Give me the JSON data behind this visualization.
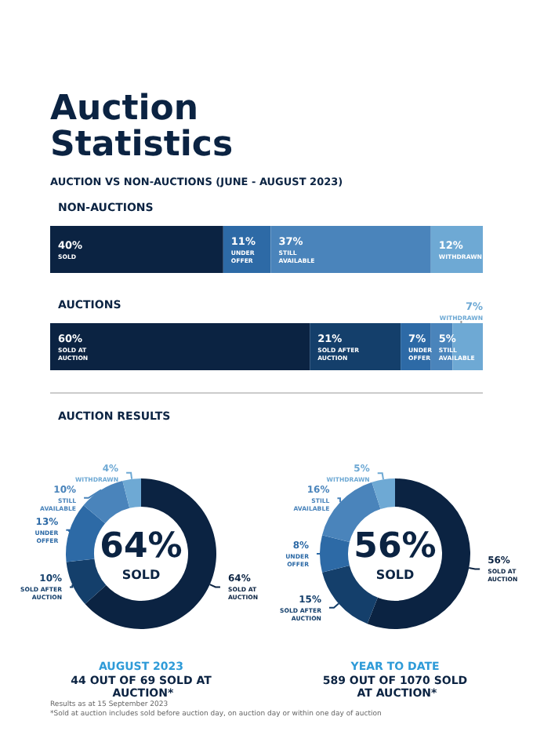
{
  "chart_data": [
    {
      "type": "other",
      "title": "Auction Statistics",
      "subtitle": "AUCTION VS NON-AUCTIONS (JUNE - AUGUST 2023)"
    },
    {
      "type": "bar",
      "title": "NON-AUCTIONS",
      "orientation": "horizontal",
      "stacked": true,
      "categories": [
        null
      ],
      "xlim": [
        0,
        100
      ],
      "tick_labels": false,
      "legend": false,
      "series": [
        {
          "name": "SOLD",
          "color": "#0b2342",
          "values": [
            40
          ],
          "value_labels": [
            "40%"
          ]
        },
        {
          "name": "UNDER OFFER",
          "color": "#2d6aa6",
          "values": [
            11
          ],
          "value_labels": [
            "11%"
          ]
        },
        {
          "name": "STILL AVAILABLE",
          "color": "#4a84bb",
          "values": [
            37
          ],
          "value_labels": [
            "37%"
          ]
        },
        {
          "name": "WITHDRAWN",
          "color": "#6ea9d4",
          "values": [
            12
          ],
          "value_labels": [
            "12%"
          ]
        }
      ]
    },
    {
      "type": "bar",
      "title": "AUCTIONS",
      "orientation": "horizontal",
      "stacked": true,
      "categories": [
        null
      ],
      "xlim": [
        0,
        100
      ],
      "tick_labels": false,
      "legend": false,
      "series": [
        {
          "name": "SOLD AT AUCTION",
          "color": "#0b2342",
          "values": [
            60
          ],
          "value_labels": [
            "60%"
          ]
        },
        {
          "name": "SOLD AFTER AUCTION",
          "color": "#143f6b",
          "values": [
            21
          ],
          "value_labels": [
            "21%"
          ]
        },
        {
          "name": "UNDER OFFER",
          "color": "#2d6aa6",
          "values": [
            7
          ],
          "value_labels": [
            "7%"
          ]
        },
        {
          "name": "STILL AVAILABLE",
          "color": "#4a84bb",
          "values": [
            5
          ],
          "value_labels": [
            "5%"
          ]
        },
        {
          "name": "WITHDRAWN",
          "color": "#6ea9d4",
          "values": [
            7
          ],
          "value_labels": [
            "7%"
          ]
        }
      ]
    },
    {
      "type": "donut",
      "title": "AUCTION RESULTS",
      "legend": false,
      "categories": [
        "SOLD AT AUCTION",
        "SOLD AFTER AUCTION",
        "UNDER OFFER",
        "STILL AVAILABLE",
        "WITHDRAWN"
      ],
      "values": [
        64,
        10,
        13,
        10,
        4
      ],
      "value_labels": [
        "64%",
        "10%",
        "13%",
        "10%",
        "4%"
      ],
      "colors": [
        "#0b2342",
        "#143f6b",
        "#2d6aa6",
        "#4a84bb",
        "#6ea9d4"
      ],
      "annotations": [
        "64%",
        "SOLD",
        "AUGUST 2023",
        "44 OUT OF 69 SOLD AT AUCTION*"
      ]
    },
    {
      "type": "donut",
      "legend": false,
      "categories": [
        "SOLD AT AUCTION",
        "SOLD AFTER AUCTION",
        "UNDER OFFER",
        "STILL AVAILABLE",
        "WITHDRAWN"
      ],
      "values": [
        56,
        15,
        8,
        16,
        5
      ],
      "value_labels": [
        "56%",
        "15%",
        "8%",
        "16%",
        "5%"
      ],
      "colors": [
        "#0b2342",
        "#143f6b",
        "#2d6aa6",
        "#4a84bb",
        "#6ea9d4"
      ],
      "annotations": [
        "56%",
        "SOLD",
        "YEAR TO DATE",
        "589 OUT OF 1070 SOLD AT AUCTION*"
      ]
    },
    {
      "type": "other",
      "annotations": [
        "Results as at 15 September 2023",
        "*Sold at auction includes sold before auction day, on auction day or within one day of auction"
      ]
    }
  ]
}
